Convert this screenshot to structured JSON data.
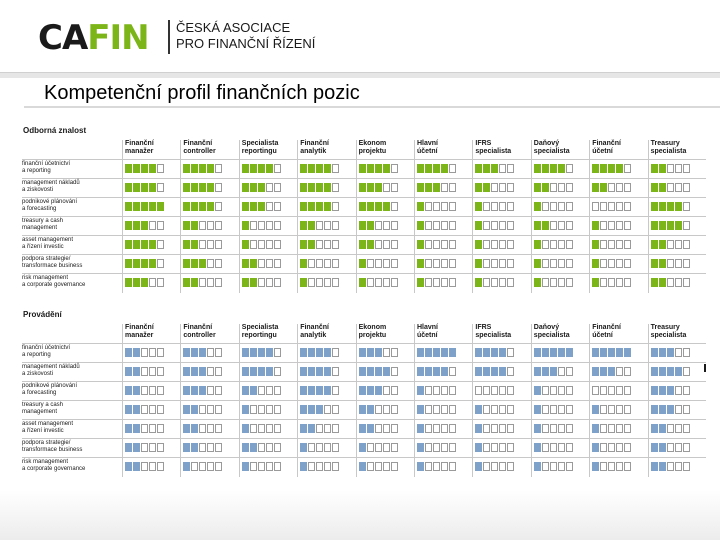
{
  "logo": {
    "mark_ca": "CA",
    "mark_fin": "FIN",
    "line1": "ČESKÁ ASOCIACE",
    "line2": "PRO FINANČNÍ ŘÍZENÍ"
  },
  "page_title": "Kompetenční profil finančních pozic",
  "columns": [
    "Finanční\nmanažer",
    "Finanční\ncontroller",
    "Specialista\nreportingu",
    "Finanční\nanalytik",
    "Ekonom\nprojektu",
    "Hlavní\núčetní",
    "IFRS\nspecialista",
    "Daňový\nspecialista",
    "Finanční\núčetní",
    "Treasury\nspecialista"
  ],
  "rows": [
    "finanční účetnictví\na reporting",
    "management nákladů\na ziskovosti",
    "podnikové plánování\na forecasting",
    "treasury a cash\nmanagement",
    "asset management\na řízení investic",
    "podpora strategie/\ntransformace business",
    "risk management\na corporate governance"
  ],
  "sections": [
    {
      "title": "Odborná znalost",
      "color": "#7cb518",
      "levels": [
        [
          4,
          4,
          4,
          4,
          4,
          4,
          3,
          4,
          4,
          2
        ],
        [
          4,
          4,
          3,
          4,
          3,
          3,
          2,
          2,
          2,
          2
        ],
        [
          5,
          4,
          3,
          4,
          4,
          1,
          1,
          1,
          0,
          4
        ],
        [
          3,
          2,
          1,
          2,
          2,
          1,
          1,
          2,
          1,
          4
        ],
        [
          4,
          2,
          1,
          2,
          2,
          1,
          1,
          1,
          1,
          2
        ],
        [
          4,
          3,
          2,
          1,
          1,
          1,
          1,
          1,
          1,
          2
        ],
        [
          3,
          2,
          2,
          1,
          1,
          1,
          1,
          1,
          1,
          2
        ]
      ]
    },
    {
      "title": "Provádění",
      "color": "#7ea1c9",
      "levels": [
        [
          2,
          3,
          4,
          4,
          3,
          5,
          4,
          5,
          5,
          3
        ],
        [
          2,
          3,
          4,
          4,
          4,
          4,
          4,
          3,
          3,
          4
        ],
        [
          2,
          3,
          2,
          4,
          3,
          1,
          0,
          1,
          0,
          3
        ],
        [
          2,
          2,
          1,
          3,
          2,
          1,
          1,
          1,
          1,
          3
        ],
        [
          2,
          2,
          1,
          2,
          2,
          1,
          1,
          1,
          1,
          2
        ],
        [
          2,
          2,
          2,
          1,
          1,
          1,
          1,
          1,
          1,
          2
        ],
        [
          2,
          1,
          1,
          1,
          1,
          1,
          1,
          1,
          1,
          2
        ]
      ]
    }
  ]
}
